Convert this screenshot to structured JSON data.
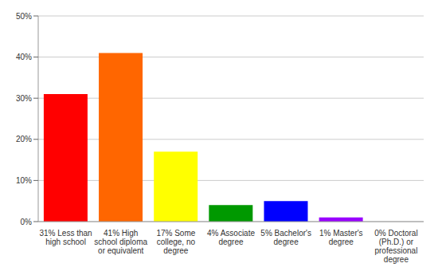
{
  "chart_data": {
    "type": "bar",
    "categories": [
      "31% Less than high school",
      "41% High school diploma or equivalent",
      "17% Some college, no degree",
      "4% Associate degree",
      "5% Bachelor's degree",
      "1% Master's degree",
      "0% Doctoral (Ph.D.) or professional degree"
    ],
    "values": [
      31,
      41,
      17,
      4,
      5,
      1,
      0
    ],
    "colors": [
      "#ff0000",
      "#ff6600",
      "#ffff00",
      "#009900",
      "#0000ff",
      "#9900ff",
      "#ff00ff"
    ],
    "ylim": [
      0,
      50
    ],
    "yticks": [
      {
        "value": 0,
        "label": "0%"
      },
      {
        "value": 10,
        "label": "10%"
      },
      {
        "value": 20,
        "label": "20%"
      },
      {
        "value": 30,
        "label": "30%"
      },
      {
        "value": 40,
        "label": "40%"
      },
      {
        "value": 50,
        "label": "50%"
      }
    ],
    "grid": true
  }
}
